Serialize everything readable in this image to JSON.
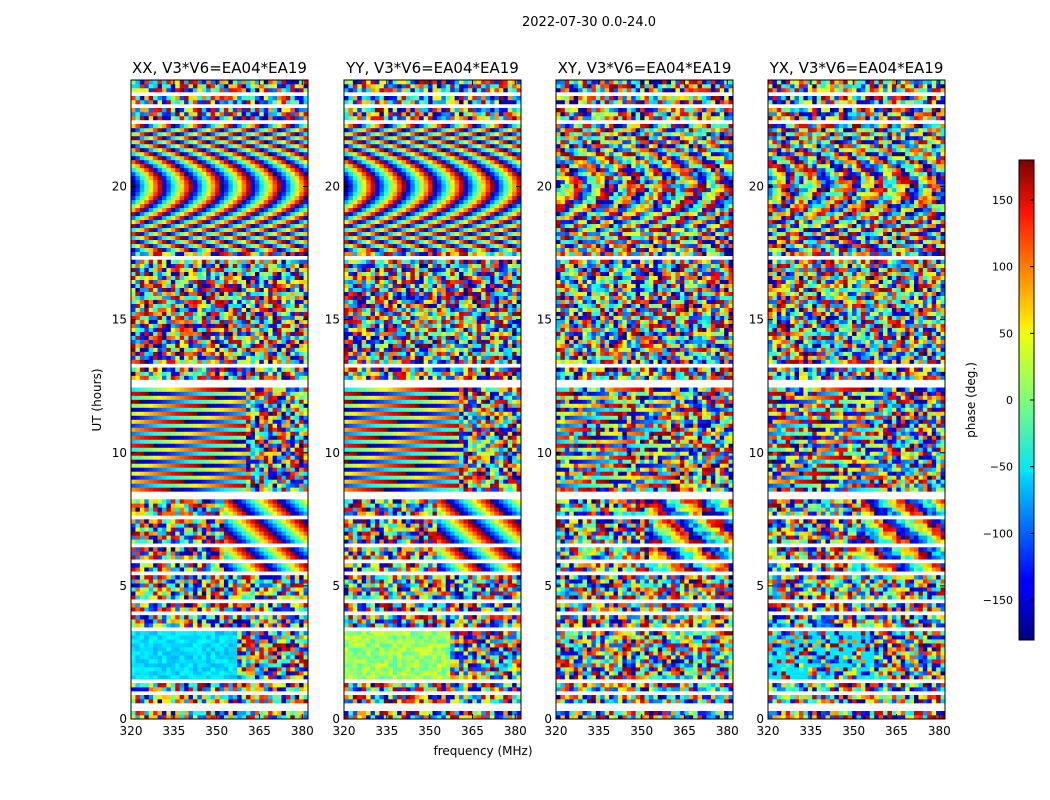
{
  "chart_data": {
    "type": "heatmap",
    "suptitle": "2022-07-30 0.0-24.0",
    "xlabel": "frequency (MHz)",
    "ylabel": "UT (hours)",
    "xlim": [
      320,
      382
    ],
    "ylim": [
      0,
      24
    ],
    "xticks": [
      320,
      335,
      350,
      365,
      380
    ],
    "yticks": [
      0,
      5,
      10,
      15,
      20
    ],
    "colorbar": {
      "label": "phase (deg.)",
      "range": [
        -180,
        180
      ],
      "ticks": [
        -150,
        -100,
        -50,
        0,
        50,
        100,
        150
      ],
      "tick_labels": [
        "−150",
        "−100",
        "−50",
        "0",
        "50",
        "100",
        "150"
      ],
      "colormap": "jet"
    },
    "panels": [
      {
        "title": "XX, V3*V6=EA04*EA19",
        "polarization": "XX"
      },
      {
        "title": "YY, V3*V6=EA04*EA19",
        "polarization": "YY"
      },
      {
        "title": "XY, V3*V6=EA04*EA19",
        "polarization": "XY"
      },
      {
        "title": "YX, V3*V6=EA04*EA19",
        "polarization": "YX"
      }
    ],
    "blank_bands_hours": [
      [
        0.3,
        0.6
      ],
      [
        0.9,
        1.05
      ],
      [
        1.4,
        1.55
      ],
      [
        3.3,
        3.45
      ],
      [
        3.95,
        4.1
      ],
      [
        4.3,
        4.45
      ],
      [
        5.35,
        5.5
      ],
      [
        5.9,
        6.05
      ],
      [
        6.5,
        6.65
      ],
      [
        7.55,
        7.7
      ],
      [
        8.3,
        8.55
      ],
      [
        12.45,
        12.8
      ],
      [
        13.25,
        13.4
      ],
      [
        17.2,
        17.45
      ],
      [
        22.3,
        22.45
      ],
      [
        22.95,
        23.1
      ],
      [
        23.4,
        23.55
      ]
    ]
  }
}
